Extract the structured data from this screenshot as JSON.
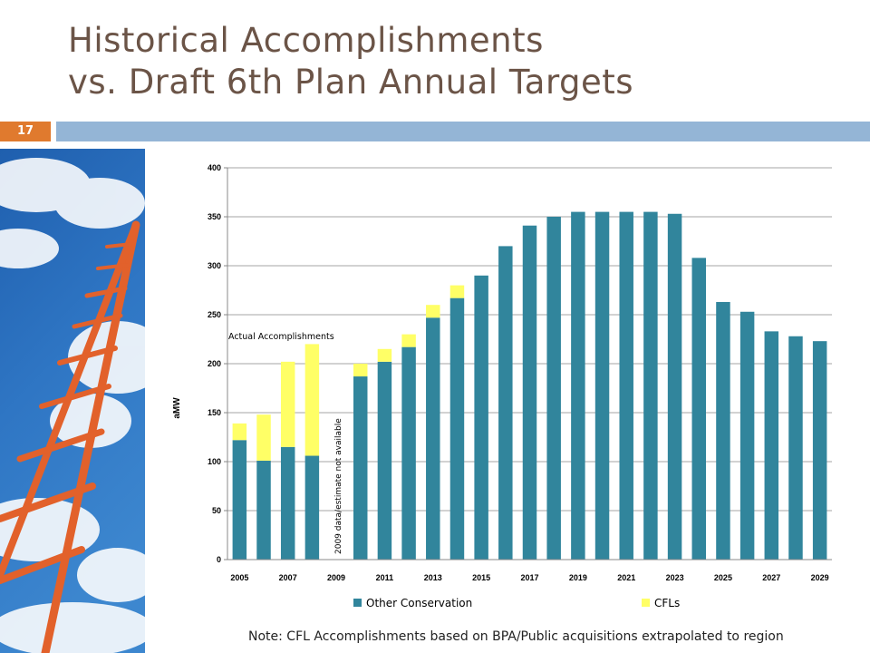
{
  "slide": {
    "title_line1": "Historical Accomplishments",
    "title_line2": "vs. Draft 6th Plan Annual Targets",
    "number": "17",
    "note": "Note: CFL Accomplishments based on BPA/Public acquisitions extrapolated to region",
    "colors": {
      "title": "#6b5447",
      "accent": "#e07a2e",
      "bar": "#94b5d6"
    }
  },
  "photo": {
    "icon": "ladder-sky-image"
  },
  "chart_data": {
    "type": "bar",
    "stacked": true,
    "years": [
      2005,
      2006,
      2007,
      2008,
      2009,
      2010,
      2011,
      2012,
      2013,
      2014,
      2015,
      2016,
      2017,
      2018,
      2019,
      2020,
      2021,
      2022,
      2023,
      2024,
      2025,
      2026,
      2027,
      2028,
      2029
    ],
    "x_tick_labels": [
      "2005",
      "2007",
      "2009",
      "2011",
      "2013",
      "2015",
      "2017",
      "2019",
      "2021",
      "2023",
      "2025",
      "2027",
      "2029"
    ],
    "ylabel": "aMW",
    "ylim": [
      0,
      400
    ],
    "y_ticks": [
      0,
      50,
      100,
      150,
      200,
      250,
      300,
      350,
      400
    ],
    "grid": true,
    "legend_position": "bottom",
    "series": [
      {
        "name": "Other Conservation",
        "color": "#31859c",
        "values": [
          122,
          101,
          115,
          106,
          null,
          187,
          202,
          217,
          247,
          267,
          290,
          320,
          341,
          350,
          355,
          355,
          355,
          355,
          353,
          308,
          263,
          253,
          233,
          228,
          223
        ]
      },
      {
        "name": "CFLs",
        "color": "#ffff66",
        "values": [
          17,
          47,
          87,
          114,
          null,
          13,
          13,
          13,
          13,
          13,
          0,
          0,
          0,
          0,
          0,
          0,
          0,
          0,
          0,
          0,
          0,
          0,
          0,
          0,
          0
        ]
      }
    ],
    "annotations": {
      "actual": "Actual Accomplishments",
      "na_2009": "2009 data/estimate not available"
    }
  }
}
